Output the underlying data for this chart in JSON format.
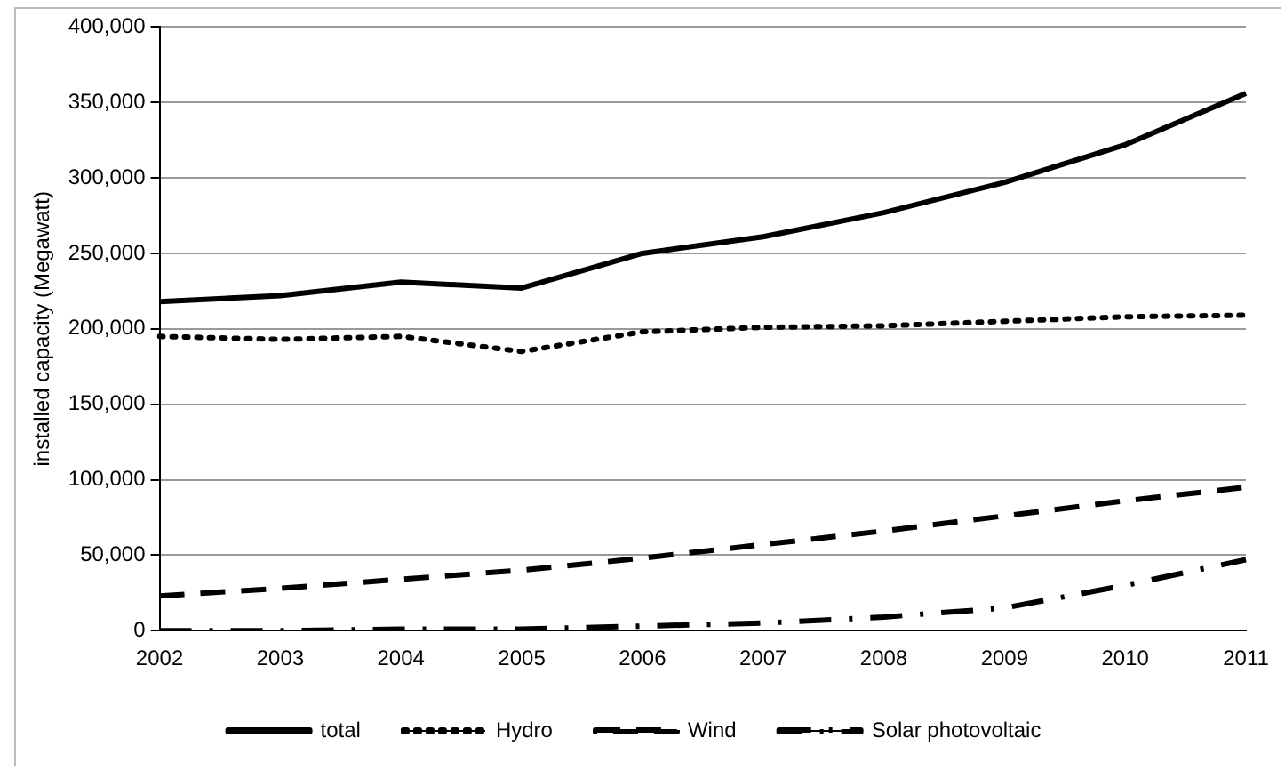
{
  "chart_data": {
    "type": "line",
    "ylabel": "installed capacity (Megawatt)",
    "categories": [
      "2002",
      "2003",
      "2004",
      "2005",
      "2006",
      "2007",
      "2008",
      "2009",
      "2010",
      "2011"
    ],
    "series": [
      {
        "name": "total",
        "color": "#000000",
        "line_style": "solid",
        "values": [
          218000,
          222000,
          231000,
          227000,
          250000,
          261000,
          277000,
          297000,
          322000,
          356000
        ]
      },
      {
        "name": "Hydro",
        "color": "#000000",
        "line_style": "dotted",
        "values": [
          195000,
          193000,
          195000,
          185000,
          198000,
          201000,
          202000,
          205000,
          208000,
          209000
        ]
      },
      {
        "name": "Wind",
        "color": "#000000",
        "line_style": "dashed",
        "values": [
          23000,
          28000,
          34000,
          40000,
          48000,
          57000,
          66000,
          76000,
          86000,
          95000
        ]
      },
      {
        "name": "Solar photovoltaic",
        "color": "#000000",
        "line_style": "dashdot",
        "values": [
          0,
          0,
          1000,
          1000,
          3000,
          5000,
          9000,
          15000,
          30000,
          47000
        ]
      }
    ],
    "ylim": [
      0,
      400000
    ],
    "yticks": [
      0,
      {
        "value": 50000,
        "label": "50,000"
      },
      {
        "value": 100000,
        "label": "100,000"
      },
      {
        "value": 150000,
        "label": "150,000"
      },
      {
        "value": 200000,
        "label": "200,000"
      },
      {
        "value": 250000,
        "label": "250,000"
      },
      {
        "value": 300000,
        "label": "300,000"
      },
      {
        "value": 350000,
        "label": "350,000"
      },
      {
        "value": 400000,
        "label": "400,000"
      }
    ],
    "grid": "y",
    "legend": "bottom",
    "marker": "none"
  }
}
